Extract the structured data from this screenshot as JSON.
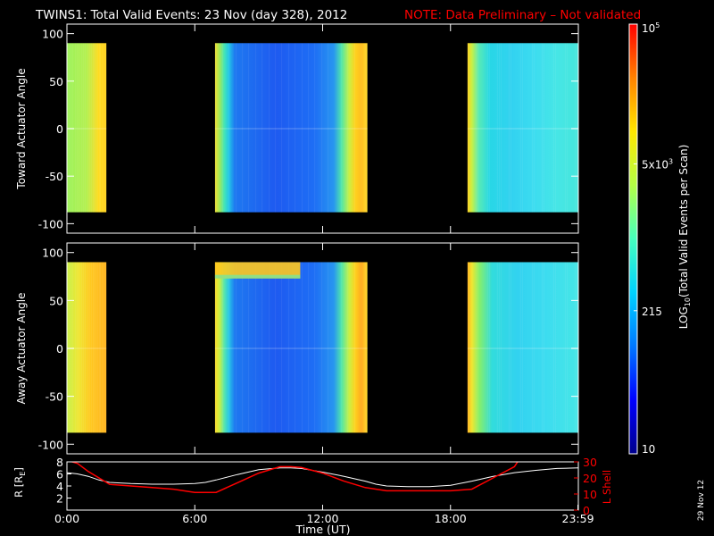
{
  "title": "TWINS1: Total Valid Events: 23 Nov (day 328), 2012",
  "note": "NOTE: Data Preliminary – Not validated",
  "date_stamp": "29 Nov 12",
  "colors": {
    "background": "#000000",
    "text": "#ffffff",
    "note": "#ff0000",
    "l_shell": "#ff0000",
    "r_line": "#ffffff"
  },
  "chart_data": [
    {
      "type": "heatmap",
      "panel": "top",
      "ylabel": "Toward Actuator Angle",
      "ylim": [
        -110,
        110
      ],
      "yticks": [
        100,
        50,
        0,
        -50,
        -100
      ],
      "x_unit": "hours UT",
      "xlim": [
        0,
        24
      ],
      "angle_range": [
        -88,
        90
      ],
      "data_blocks": [
        {
          "start_hr": 0.0,
          "end_hr": 1.85,
          "gradient": [
            [
              "#9cf25a",
              0
            ],
            [
              "#b4f050",
              0.5
            ],
            [
              "#ffdc1e",
              0.8
            ],
            [
              "#ffd21e",
              1
            ]
          ]
        },
        {
          "start_hr": 6.95,
          "end_hr": 14.1,
          "gradient": [
            [
              "#f2e032",
              0
            ],
            [
              "#a0ea5a",
              0.03
            ],
            [
              "#46e6b4",
              0.06
            ],
            [
              "#23c8e6",
              0.09
            ],
            [
              "#1e78f0",
              0.13
            ],
            [
              "#1e5af0",
              0.4
            ],
            [
              "#1e6ef5",
              0.65
            ],
            [
              "#2896f0",
              0.78
            ],
            [
              "#50e6aa",
              0.83
            ],
            [
              "#c8f046",
              0.88
            ],
            [
              "#ffd21e",
              0.92
            ],
            [
              "#ffbe1e",
              0.96
            ],
            [
              "#ffdc32",
              1
            ]
          ]
        },
        {
          "start_hr": 18.8,
          "end_hr": 24.0,
          "gradient": [
            [
              "#ffd21e",
              0
            ],
            [
              "#c8f046",
              0.04
            ],
            [
              "#5aebb4",
              0.1
            ],
            [
              "#28d7e6",
              0.2
            ],
            [
              "#32d2f0",
              0.4
            ],
            [
              "#3cdcf0",
              0.6
            ],
            [
              "#46e6e6",
              0.8
            ],
            [
              "#46e6dc",
              1
            ]
          ]
        }
      ]
    },
    {
      "type": "heatmap",
      "panel": "middle",
      "ylabel": "Away Actuator Angle",
      "ylim": [
        -110,
        110
      ],
      "yticks": [
        100,
        50,
        0,
        -50,
        -100
      ],
      "x_unit": "hours UT",
      "xlim": [
        0,
        24
      ],
      "angle_range": [
        -88,
        90
      ],
      "data_blocks": [
        {
          "start_hr": 0.0,
          "end_hr": 1.85,
          "gradient": [
            [
              "#c8f046",
              0
            ],
            [
              "#f0e632",
              0.3
            ],
            [
              "#ffc81e",
              0.6
            ],
            [
              "#ffb41e",
              1
            ]
          ]
        },
        {
          "start_hr": 6.95,
          "end_hr": 14.1,
          "gradient": [
            [
              "#ffdc28",
              0
            ],
            [
              "#c8f046",
              0.03
            ],
            [
              "#5ae6aa",
              0.06
            ],
            [
              "#28c8e6",
              0.09
            ],
            [
              "#1e78f0",
              0.13
            ],
            [
              "#1e5af0",
              0.4
            ],
            [
              "#1e6ef5",
              0.65
            ],
            [
              "#2896f0",
              0.78
            ],
            [
              "#50e6aa",
              0.83
            ],
            [
              "#c8f046",
              0.88
            ],
            [
              "#ffd21e",
              0.92
            ],
            [
              "#ffaa1e",
              0.96
            ],
            [
              "#ffdc32",
              1
            ]
          ],
          "band": {
            "from_deg": 73,
            "to_deg": 90,
            "color": "#ffc81e",
            "end_hr": 10.95
          }
        },
        {
          "start_hr": 18.8,
          "end_hr": 24.0,
          "gradient": [
            [
              "#ffb41e",
              0
            ],
            [
              "#f0e632",
              0.04
            ],
            [
              "#8cf064",
              0.1
            ],
            [
              "#32dcdc",
              0.22
            ],
            [
              "#32d2f0",
              0.45
            ],
            [
              "#3cdcf0",
              0.7
            ],
            [
              "#46e6e6",
              1
            ]
          ]
        }
      ]
    },
    {
      "type": "line",
      "panel": "bottom",
      "xlabel": "Time (UT)",
      "xticks": [
        "0:00",
        "6:00",
        "12:00",
        "18:00",
        "23:59"
      ],
      "xtick_hours": [
        0,
        6,
        12,
        18,
        23.98
      ],
      "left_axis": {
        "label": "R [R_E]",
        "label_main": "R [R",
        "label_sub": "E",
        "label_close": "]",
        "ylim": [
          0,
          8
        ],
        "yticks": [
          2,
          4,
          6,
          8
        ]
      },
      "right_axis": {
        "label": "L Shell",
        "ylim": [
          0,
          30
        ],
        "yticks": [
          0,
          10,
          20,
          30
        ]
      },
      "series": [
        {
          "name": "R",
          "axis": "left",
          "color": "#ffffff",
          "x": [
            0,
            0.5,
            1.0,
            1.5,
            2.0,
            3.0,
            4.0,
            5.0,
            6.0,
            6.5,
            7.0,
            8.0,
            9.0,
            10.0,
            10.5,
            11.0,
            12.0,
            13.0,
            14.0,
            14.5,
            15.0,
            16.0,
            17.0,
            18.0,
            19.0,
            20.0,
            21.0,
            22.0,
            23.0,
            24.0
          ],
          "y": [
            6.2,
            6.0,
            5.6,
            5.0,
            4.6,
            4.4,
            4.3,
            4.3,
            4.4,
            4.6,
            5.0,
            5.9,
            6.7,
            7.0,
            7.0,
            6.9,
            6.3,
            5.6,
            4.8,
            4.3,
            4.0,
            3.9,
            3.9,
            4.1,
            4.8,
            5.6,
            6.2,
            6.6,
            6.9,
            7.0
          ]
        },
        {
          "name": "L Shell",
          "axis": "right",
          "color": "#ff0000",
          "x": [
            0,
            0.5,
            1.0,
            2.0,
            3.0,
            4.0,
            5.0,
            6.0,
            7.0,
            8.0,
            9.0,
            10.0,
            10.5,
            11.0,
            12.0,
            13.0,
            14.0,
            15.0,
            16.0,
            17.0,
            18.0,
            19.0,
            20.0,
            21.0,
            21.2
          ],
          "y": [
            31,
            29,
            24,
            16,
            15,
            14,
            13,
            11,
            11,
            17,
            23,
            27,
            27,
            26.5,
            23,
            18,
            14,
            12,
            12,
            12,
            12,
            13,
            20,
            27,
            31
          ]
        }
      ]
    },
    {
      "type": "colorbar",
      "label_main": "LOG",
      "label_sub": "10",
      "label_rest": "(Total Valid Events per Scan)",
      "scale": "log",
      "range": [
        10,
        100000
      ],
      "ticks": [
        {
          "value": 10,
          "label": "10"
        },
        {
          "value": 215,
          "label": "215"
        },
        {
          "value": 5000,
          "label_mant": "5x10",
          "label_exp": "3"
        },
        {
          "value": 100000,
          "label_mant": "10",
          "label_exp": "5"
        }
      ],
      "colormap": [
        "#00008c",
        "#0000ff",
        "#0078ff",
        "#00d2ff",
        "#46ffbe",
        "#b4ff46",
        "#ffe600",
        "#ff8200",
        "#ff0000"
      ]
    }
  ]
}
